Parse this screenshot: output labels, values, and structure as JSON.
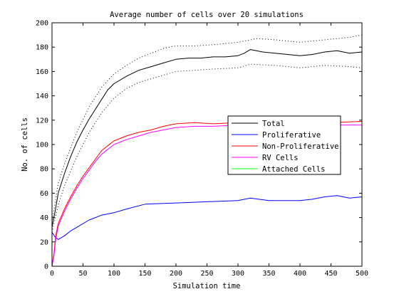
{
  "chart_data": {
    "type": "line",
    "title": "Average number of cells over 20 simulations",
    "xlabel": "Simulation time",
    "ylabel": "No. of cells",
    "xlim": [
      0,
      500
    ],
    "ylim": [
      0,
      200
    ],
    "xticks": [
      0,
      50,
      100,
      150,
      200,
      250,
      300,
      350,
      400,
      450,
      500
    ],
    "yticks": [
      0,
      20,
      40,
      60,
      80,
      100,
      120,
      140,
      160,
      180,
      200
    ],
    "grid": false,
    "legend_position": "right",
    "series": [
      {
        "name": "Total",
        "color": "#000000",
        "style": "solid",
        "x": [
          0,
          5,
          10,
          20,
          30,
          40,
          50,
          60,
          70,
          80,
          90,
          100,
          120,
          140,
          160,
          180,
          200,
          220,
          240,
          260,
          280,
          300,
          310,
          320,
          340,
          360,
          380,
          400,
          420,
          440,
          460,
          480,
          500
        ],
        "y": [
          32,
          45,
          60,
          76,
          90,
          102,
          112,
          121,
          129,
          137,
          145,
          150,
          156,
          161,
          164,
          167,
          170,
          171,
          171,
          172,
          172,
          173,
          175,
          178,
          176,
          175,
          174,
          173,
          174,
          176,
          177,
          175,
          176
        ]
      },
      {
        "name": "Proliferative",
        "color": "#0000ff",
        "style": "solid",
        "x": [
          0,
          5,
          10,
          20,
          30,
          40,
          60,
          80,
          100,
          120,
          150,
          200,
          250,
          300,
          320,
          350,
          400,
          420,
          440,
          460,
          480,
          500
        ],
        "y": [
          28,
          24,
          22,
          25,
          29,
          32,
          38,
          42,
          44,
          47,
          51,
          52,
          53,
          54,
          56,
          54,
          54,
          55,
          57,
          58,
          56,
          57
        ]
      },
      {
        "name": "Non-Proliferative",
        "color": "#ff0000",
        "style": "solid",
        "x": [
          0,
          3,
          6,
          10,
          20,
          30,
          40,
          50,
          60,
          70,
          80,
          90,
          100,
          120,
          140,
          160,
          180,
          200,
          230,
          260,
          300,
          350,
          400,
          450,
          500
        ],
        "y": [
          0,
          10,
          25,
          35,
          47,
          57,
          66,
          74,
          81,
          88,
          95,
          99,
          103,
          107,
          110,
          112,
          115,
          117,
          118,
          117,
          118,
          117,
          118,
          118,
          119
        ]
      },
      {
        "name": "RV Cells",
        "color": "#ff00ff",
        "style": "solid",
        "x": [
          0,
          3,
          6,
          10,
          20,
          30,
          40,
          50,
          60,
          70,
          80,
          90,
          100,
          120,
          140,
          160,
          180,
          200,
          230,
          260,
          300,
          350,
          400,
          450,
          500
        ],
        "y": [
          0,
          8,
          22,
          33,
          45,
          55,
          64,
          72,
          79,
          86,
          92,
          96,
          100,
          104,
          107,
          110,
          112,
          114,
          115,
          115,
          116,
          115,
          115,
          116,
          116
        ]
      },
      {
        "name": "Attached Cells",
        "color": "#00ff00",
        "style": "solid",
        "x": [
          0,
          500
        ],
        "y": [
          0,
          0
        ]
      },
      {
        "name": "",
        "color": "#000000",
        "style": "dotted",
        "x": [
          0,
          10,
          20,
          40,
          60,
          80,
          100,
          120,
          140,
          160,
          180,
          200,
          230,
          260,
          300,
          330,
          360,
          400,
          440,
          480,
          500
        ],
        "y": [
          36,
          68,
          84,
          110,
          131,
          147,
          158,
          165,
          171,
          175,
          179,
          181,
          181,
          182,
          184,
          187,
          186,
          184,
          186,
          188,
          190
        ]
      },
      {
        "name": "",
        "color": "#000000",
        "style": "dotted",
        "x": [
          0,
          10,
          20,
          40,
          60,
          80,
          100,
          120,
          140,
          160,
          180,
          200,
          230,
          260,
          300,
          320,
          360,
          400,
          440,
          480,
          500
        ],
        "y": [
          28,
          50,
          66,
          90,
          110,
          126,
          138,
          146,
          151,
          154,
          157,
          160,
          161,
          162,
          163,
          166,
          165,
          163,
          165,
          164,
          163
        ]
      }
    ]
  }
}
